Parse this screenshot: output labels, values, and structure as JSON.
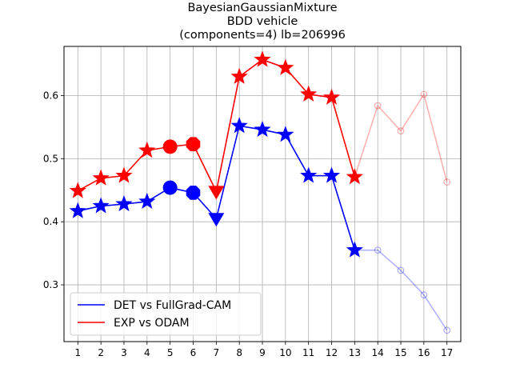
{
  "chart_data": {
    "type": "line",
    "title_lines": [
      "BayesianGaussianMixture",
      "BDD vehicle",
      "(components=4) lb=206996"
    ],
    "xlabel": "",
    "ylabel": "",
    "x": [
      1,
      2,
      3,
      4,
      5,
      6,
      7,
      8,
      9,
      10,
      11,
      12,
      13,
      14,
      15,
      16,
      17
    ],
    "x_ticks": [
      "1",
      "2",
      "3",
      "4",
      "5",
      "6",
      "7",
      "8",
      "9",
      "10",
      "11",
      "12",
      "13",
      "14",
      "15",
      "16",
      "17"
    ],
    "y_ticks": [
      0.3,
      0.4,
      0.5,
      0.6
    ],
    "y_tick_labels": [
      "0.3",
      "0.4",
      "0.5",
      "0.6"
    ],
    "xlim": [
      0.4,
      17.6
    ],
    "ylim": [
      0.21,
      0.678
    ],
    "grid": true,
    "legend_position": "lower-left",
    "series": [
      {
        "name": "DET vs FullGrad-CAM",
        "color": "#0000ff",
        "values": [
          0.417,
          0.425,
          0.428,
          0.432,
          0.454,
          0.446,
          0.405,
          0.552,
          0.546,
          0.538,
          0.473,
          0.473,
          0.355,
          0.355,
          0.323,
          0.284,
          0.228
        ],
        "markers": [
          "star",
          "star",
          "star",
          "star",
          "circle",
          "octagon",
          "triangle-down",
          "star",
          "star",
          "star",
          "star",
          "star",
          "star",
          "circle-open",
          "circle-open",
          "circle-open",
          "circle-open"
        ],
        "faded_from_index": 12
      },
      {
        "name": "EXP vs ODAM",
        "color": "#ff0000",
        "values": [
          0.449,
          0.469,
          0.473,
          0.513,
          0.519,
          0.523,
          0.448,
          0.63,
          0.657,
          0.644,
          0.602,
          0.597,
          0.471,
          0.584,
          0.544,
          0.602,
          0.463
        ],
        "markers": [
          "star",
          "star",
          "star",
          "star",
          "circle",
          "octagon",
          "triangle-down",
          "star",
          "star",
          "star",
          "star",
          "star",
          "star",
          "circle-open",
          "circle-open",
          "circle-open",
          "circle-open"
        ],
        "faded_from_index": 12
      }
    ]
  }
}
